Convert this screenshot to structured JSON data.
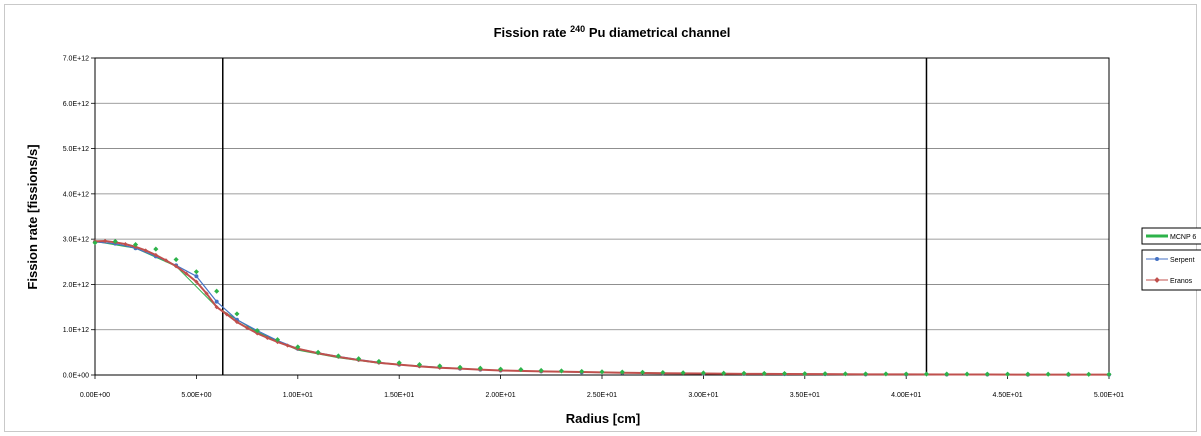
{
  "chart_data": {
    "type": "line",
    "title": "Fission rate",
    "title_sup": "240",
    "title_rest": "Pu diametrical channel",
    "xlabel": "Radius [cm]",
    "ylabel": "Fission rate [fissions/s]",
    "xlim": [
      0,
      50
    ],
    "ylim": [
      0,
      7000000000000.0
    ],
    "x_tick_labels": [
      "0.00E+00",
      "5.00E+00",
      "1.00E+01",
      "1.50E+01",
      "2.00E+01",
      "2.50E+01",
      "3.00E+01",
      "3.50E+01",
      "4.00E+01",
      "4.50E+01",
      "5.00E+01"
    ],
    "y_tick_labels": [
      "0.0E+00",
      "1.0E+12",
      "2.0E+12",
      "3.0E+12",
      "4.0E+12",
      "5.0E+12",
      "6.0E+12",
      "7.0E+12"
    ],
    "grid": "horizontal",
    "vertical_markers_x": [
      6.3,
      41.0
    ],
    "legend_position": "right",
    "series": [
      {
        "name": "MCNP 6",
        "color": "#2db34a",
        "style": "thick-line",
        "x": [
          0,
          2,
          4,
          6,
          8,
          10,
          12,
          14,
          16,
          18,
          20,
          25,
          30,
          35,
          40,
          45,
          50
        ],
        "values": [
          2950000000000.0,
          2800000000000.0,
          2400000000000.0,
          1500000000000.0,
          950000000000.0,
          550000000000.0,
          380000000000.0,
          260000000000.0,
          190000000000.0,
          140000000000.0,
          100000000000.0,
          60000000000.0,
          35000000000.0,
          20000000000.0,
          15000000000.0,
          10000000000.0,
          8000000000.0
        ]
      },
      {
        "name": "Serpent",
        "color": "#4472c4",
        "style": "line-circle",
        "x": [
          0,
          1,
          2,
          3,
          4,
          5,
          6,
          7,
          8,
          9,
          10,
          11,
          12,
          13,
          14,
          15,
          16,
          17,
          18,
          19,
          20,
          22,
          24,
          26,
          28,
          30,
          32,
          34,
          36,
          38,
          40,
          42,
          44,
          46,
          48,
          50
        ],
        "values": [
          2940000000000.0,
          2900000000000.0,
          2800000000000.0,
          2620000000000.0,
          2420000000000.0,
          2180000000000.0,
          1620000000000.0,
          1220000000000.0,
          980000000000.0,
          760000000000.0,
          580000000000.0,
          490000000000.0,
          410000000000.0,
          340000000000.0,
          280000000000.0,
          230000000000.0,
          200000000000.0,
          170000000000.0,
          140000000000.0,
          120000000000.0,
          100000000000.0,
          80000000000.0,
          60000000000.0,
          50000000000.0,
          40000000000.0,
          30000000000.0,
          25000000000.0,
          20000000000.0,
          18000000000.0,
          15000000000.0,
          13000000000.0,
          11000000000.0,
          10000000000.0,
          9000000000.0,
          8000000000.0,
          7000000000.0
        ]
      },
      {
        "name": "Eranos",
        "color": "#c0504d",
        "style": "line-diamond",
        "x": [
          0,
          0.5,
          1,
          1.5,
          2,
          2.5,
          3,
          3.5,
          4,
          4.5,
          5,
          5.5,
          6,
          6.5,
          7,
          7.5,
          8,
          8.5,
          9,
          9.5,
          10,
          11,
          12,
          13,
          14,
          15,
          16,
          17,
          18,
          19,
          20,
          22,
          24,
          26,
          28,
          30,
          32,
          34,
          36,
          38,
          40,
          42,
          44,
          46,
          48,
          50
        ],
        "values": [
          2950000000000.0,
          2960000000000.0,
          2930000000000.0,
          2890000000000.0,
          2830000000000.0,
          2750000000000.0,
          2650000000000.0,
          2530000000000.0,
          2400000000000.0,
          2240000000000.0,
          2060000000000.0,
          1800000000000.0,
          1500000000000.0,
          1340000000000.0,
          1170000000000.0,
          1040000000000.0,
          920000000000.0,
          820000000000.0,
          730000000000.0,
          650000000000.0,
          580000000000.0,
          480000000000.0,
          400000000000.0,
          330000000000.0,
          270000000000.0,
          230000000000.0,
          190000000000.0,
          160000000000.0,
          140000000000.0,
          120000000000.0,
          100000000000.0,
          80000000000.0,
          65000000000.0,
          50000000000.0,
          40000000000.0,
          32000000000.0,
          26000000000.0,
          21000000000.0,
          18000000000.0,
          15000000000.0,
          13000000000.0,
          11000000000.0,
          10000000000.0,
          9000000000.0,
          8000000000.0,
          7000000000.0
        ]
      }
    ],
    "mcnp_markers": {
      "color": "#2db34a",
      "x": [
        0,
        1,
        2,
        3,
        4,
        5,
        6,
        7,
        8,
        9,
        10,
        11,
        12,
        13,
        14,
        15,
        16,
        17,
        18,
        19,
        20,
        21,
        22,
        23,
        24,
        25,
        26,
        27,
        28,
        29,
        30,
        31,
        32,
        33,
        34,
        35,
        36,
        37,
        38,
        39,
        40,
        41,
        42,
        43,
        44,
        45,
        46,
        47,
        48,
        49,
        50
      ],
      "values": [
        2920000000000.0,
        2950000000000.0,
        2880000000000.0,
        2780000000000.0,
        2550000000000.0,
        2280000000000.0,
        1850000000000.0,
        1350000000000.0,
        980000000000.0,
        780000000000.0,
        620000000000.0,
        500000000000.0,
        420000000000.0,
        360000000000.0,
        300000000000.0,
        270000000000.0,
        230000000000.0,
        200000000000.0,
        170000000000.0,
        150000000000.0,
        130000000000.0,
        120000000000.0,
        100000000000.0,
        90000000000.0,
        80000000000.0,
        70000000000.0,
        65000000000.0,
        60000000000.0,
        55000000000.0,
        50000000000.0,
        45000000000.0,
        40000000000.0,
        38000000000.0,
        35000000000.0,
        33000000000.0,
        30000000000.0,
        28000000000.0,
        26000000000.0,
        25000000000.0,
        24000000000.0,
        22000000000.0,
        21000000000.0,
        20000000000.0,
        20000000000.0,
        19000000000.0,
        18000000000.0,
        18000000000.0,
        17000000000.0,
        17000000000.0,
        16000000000.0,
        16000000000.0
      ]
    }
  }
}
